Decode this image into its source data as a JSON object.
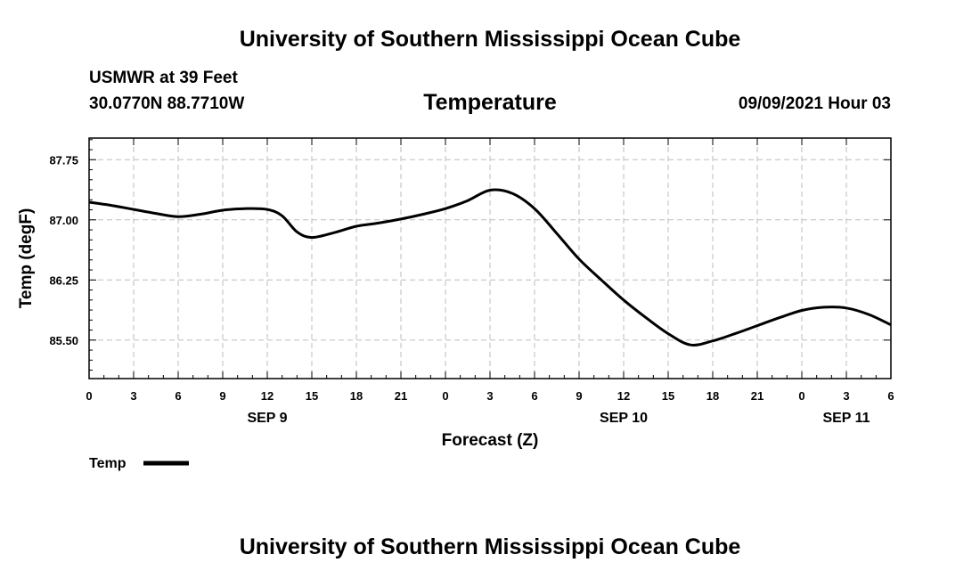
{
  "header": {
    "title": "University of Southern Mississippi Ocean Cube",
    "station": "USMWR at 39 Feet",
    "coords": "30.0770N  88.7710W",
    "timestamp": "09/09/2021 Hour 03"
  },
  "footer": {
    "title": "University of Southern Mississippi Ocean Cube"
  },
  "chart_data": {
    "type": "line",
    "title": "Temperature",
    "xlabel": "Forecast (Z)",
    "ylabel": "Temp (degF)",
    "xlim": [
      0,
      54
    ],
    "ylim": [
      85.02,
      88.02
    ],
    "grid": true,
    "legend_position": "bottom-left",
    "x_ticks": [
      0,
      3,
      6,
      9,
      12,
      15,
      18,
      21,
      24,
      27,
      30,
      33,
      36,
      39,
      42,
      45,
      48,
      51,
      54
    ],
    "x_tick_labels": [
      "0",
      "3",
      "6",
      "9",
      "12",
      "15",
      "18",
      "21",
      "0",
      "3",
      "6",
      "9",
      "12",
      "15",
      "18",
      "21",
      "0",
      "3",
      "6"
    ],
    "y_ticks": [
      85.5,
      86.25,
      87.0,
      87.75
    ],
    "y_tick_labels": [
      "85.50",
      "86.25",
      "87.00",
      "87.75"
    ],
    "date_labels": [
      {
        "x": 12,
        "label": "SEP 9"
      },
      {
        "x": 36,
        "label": "SEP 10"
      },
      {
        "x": 51,
        "label": "SEP 11"
      }
    ],
    "series": [
      {
        "name": "Temp",
        "color": "#000000",
        "x": [
          0,
          1.5,
          3,
          4.5,
          6,
          7.5,
          9,
          10.5,
          12,
          13,
          14,
          15,
          16.5,
          18,
          19.5,
          21,
          22.5,
          24,
          25.5,
          27,
          28.5,
          30,
          31.5,
          33,
          34.5,
          36,
          37.5,
          39,
          40.5,
          42,
          43.5,
          45,
          46.5,
          48,
          49.5,
          51,
          52.5,
          54
        ],
        "values": [
          87.22,
          87.18,
          87.13,
          87.08,
          87.04,
          87.07,
          87.12,
          87.14,
          87.13,
          87.05,
          86.85,
          86.78,
          86.84,
          86.92,
          86.96,
          87.01,
          87.07,
          87.14,
          87.24,
          87.37,
          87.33,
          87.14,
          86.83,
          86.51,
          86.25,
          86.0,
          85.78,
          85.58,
          85.44,
          85.49,
          85.58,
          85.68,
          85.78,
          85.87,
          85.91,
          85.9,
          85.82,
          85.69
        ]
      }
    ]
  }
}
